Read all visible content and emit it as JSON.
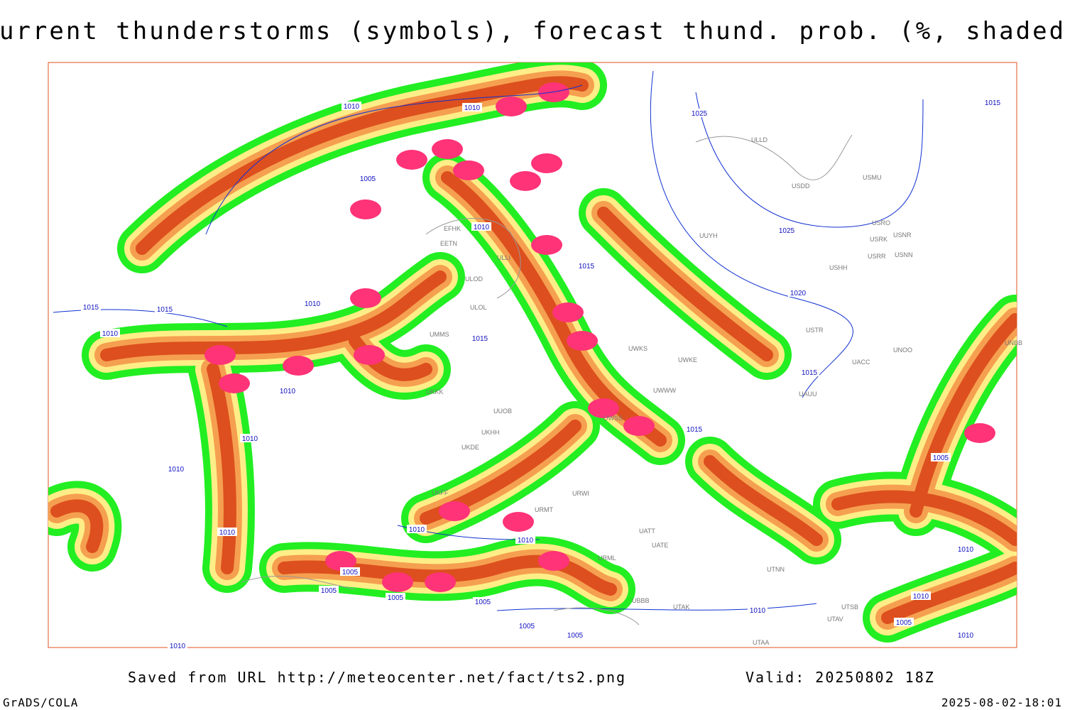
{
  "header": {
    "title": "Current thunderstorms (symbols), forecast thund. prob. (%, shaded)"
  },
  "footer": {
    "source": "Saved from URL http://meteocenter.net/fact/ts2.png",
    "valid": "Valid: 20250802 18Z",
    "software": "GrADS/COLA",
    "timestamp": "2025-08-02-18:01"
  },
  "isobar_labels": [
    "1010",
    "1010",
    "1005",
    "1010",
    "1010",
    "1010",
    "1010",
    "1010",
    "1010",
    "1010",
    "1010",
    "1010",
    "1005",
    "1005",
    "1005",
    "1005",
    "1005",
    "1005",
    "1005",
    "1005",
    "1010",
    "1010",
    "1010",
    "1010",
    "1010",
    "1015",
    "1015",
    "1015",
    "1015",
    "1015",
    "1015",
    "1015",
    "1025",
    "1025",
    "1020"
  ],
  "station_labels": [
    "ULLI",
    "ULOD",
    "ULOL",
    "EFHK",
    "EETN",
    "UUYH",
    "USDD",
    "USMU",
    "USRO",
    "USNR",
    "USRK",
    "USRR",
    "USNN",
    "USHH",
    "USTR",
    "UNOO",
    "UNBB",
    "UACC",
    "UAUU",
    "UWKS",
    "UWKE",
    "UWWW",
    "UWSS",
    "UUOB",
    "UKKK",
    "UKHH",
    "UKDE",
    "UKFF",
    "UBBB",
    "UTAK",
    "UTAV",
    "UTSB",
    "UTAA",
    "UATE",
    "UATT",
    "URML",
    "URWI",
    "URMT",
    "UTNN",
    "UMMS",
    "ULLD"
  ]
}
